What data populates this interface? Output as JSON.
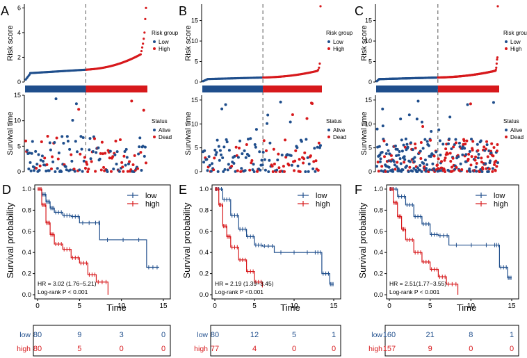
{
  "colors": {
    "low": "#1f4e8c",
    "high": "#d7191c",
    "axis": "#000000",
    "dash": "#555555"
  },
  "risk_panels": [
    {
      "letter": "A",
      "ylabel": "Risk score",
      "yticks": [
        0,
        2,
        4,
        6
      ],
      "ymax": 6.3,
      "cutoff_index": 80,
      "n": 160,
      "tail": [
        2.5,
        2.8,
        3.1,
        3.5,
        4.0,
        5.1,
        6.0
      ],
      "base_low": 0.2,
      "base_mid": 1.0,
      "base_end": 2.0
    },
    {
      "letter": "B",
      "ylabel": "Risk score",
      "yticks": [
        0,
        5,
        10,
        15
      ],
      "ymax": 19,
      "cutoff_index": 80,
      "n": 157,
      "tail": [
        3.0,
        3.5,
        4.5,
        18.5
      ],
      "base_low": 0.2,
      "base_mid": 1.1,
      "base_end": 2.4
    },
    {
      "letter": "C",
      "ylabel": "Risk score",
      "yticks": [
        0,
        5,
        10,
        15
      ],
      "ymax": 19,
      "cutoff_index": 160,
      "n": 317,
      "tail": [
        3.0,
        3.5,
        4.5,
        5.5,
        6.0,
        18.5
      ],
      "base_low": 0.2,
      "base_mid": 1.1,
      "base_end": 2.4
    }
  ],
  "risk_legend": {
    "title": "Risk group",
    "low": "Low",
    "high": "High"
  },
  "status_legend": {
    "title": "Status",
    "alive": "Alive",
    "dead": "Dead"
  },
  "surv_ylabel": "Survival time",
  "surv_yticks": [
    0,
    5,
    10,
    15
  ],
  "km_panels": [
    {
      "letter": "D",
      "hr": "HR = 3.02 (1.76−5.21)",
      "logrank": "Log-rank P < 0.001",
      "xticks": [
        0,
        5,
        10,
        15
      ],
      "xmax": 15,
      "risk_low": [
        80,
        9,
        3,
        0
      ],
      "risk_high": [
        80,
        5,
        0,
        0
      ]
    },
    {
      "letter": "E",
      "hr": "HR = 2.19 (1.39−3.45)",
      "logrank": "Log-rank P <0.001",
      "xticks": [
        0,
        5,
        10,
        15
      ],
      "xmax": 15,
      "risk_low": [
        80,
        12,
        5,
        1
      ],
      "risk_high": [
        77,
        4,
        0,
        0
      ]
    },
    {
      "letter": "F",
      "hr": "HR = 2.51(1.77−3.55)",
      "logrank": "Log-rank P < 0.001",
      "xticks": [
        0,
        5,
        10,
        15
      ],
      "xmax": 15,
      "risk_low": [
        160,
        21,
        8,
        1
      ],
      "risk_high": [
        157,
        9,
        0,
        0
      ]
    }
  ],
  "km_legend": {
    "low": "low",
    "high": "high"
  },
  "km_ylabel": "Survival probability",
  "km_xlabel": "Time",
  "km_yticks": [
    "0.0",
    "0.2",
    "0.4",
    "0.6",
    "0.8",
    "1.0"
  ],
  "risk_table_labels": {
    "low": "low",
    "high": "high"
  },
  "chart_data": [
    {
      "type": "scatter",
      "panel": "A",
      "ylabel": "Risk score",
      "ylim": [
        0,
        6.3
      ],
      "legend": [
        "Low",
        "High"
      ],
      "note": "sorted risk score, dashed cutoff"
    },
    {
      "type": "scatter",
      "panel": "A-status",
      "ylabel": "Survival time",
      "ylim": [
        0,
        15
      ],
      "legend": [
        "Alive",
        "Dead"
      ]
    },
    {
      "type": "scatter",
      "panel": "B",
      "ylabel": "Risk score",
      "ylim": [
        0,
        19
      ],
      "legend": [
        "Low",
        "High"
      ]
    },
    {
      "type": "scatter",
      "panel": "B-status",
      "ylabel": "Survival time",
      "ylim": [
        0,
        16
      ],
      "legend": [
        "Alive",
        "Dead"
      ]
    },
    {
      "type": "scatter",
      "panel": "C",
      "ylabel": "Risk score",
      "ylim": [
        0,
        19
      ],
      "legend": [
        "Low",
        "High"
      ]
    },
    {
      "type": "scatter",
      "panel": "C-status",
      "ylabel": "Survival time",
      "ylim": [
        0,
        16
      ],
      "legend": [
        "Alive",
        "Dead"
      ]
    },
    {
      "type": "line",
      "panel": "D",
      "xlabel": "Time",
      "ylabel": "Survival probability",
      "xlim": [
        0,
        15
      ],
      "ylim": [
        0,
        1
      ],
      "series": [
        {
          "name": "low",
          "x": [
            0,
            0.5,
            1,
            1.5,
            2,
            3,
            4,
            5,
            7.3,
            7.4,
            13,
            14.5
          ],
          "y": [
            1.0,
            0.95,
            0.88,
            0.82,
            0.78,
            0.75,
            0.74,
            0.68,
            0.68,
            0.52,
            0.26,
            0.26
          ]
        },
        {
          "name": "high",
          "x": [
            0,
            0.5,
            1,
            1.5,
            2,
            3,
            4,
            5,
            6,
            7,
            8.4
          ],
          "y": [
            1.0,
            0.85,
            0.68,
            0.57,
            0.48,
            0.43,
            0.35,
            0.3,
            0.19,
            0.12,
            0.0
          ]
        }
      ]
    },
    {
      "type": "line",
      "panel": "E",
      "xlabel": "Time",
      "ylabel": "Survival probability",
      "xlim": [
        0,
        15
      ],
      "ylim": [
        0,
        1
      ],
      "series": [
        {
          "name": "low",
          "x": [
            0,
            1,
            2,
            3,
            4,
            5,
            6,
            7.5,
            12.5,
            13.5,
            14.5,
            15
          ],
          "y": [
            1.0,
            0.9,
            0.75,
            0.62,
            0.55,
            0.47,
            0.46,
            0.4,
            0.4,
            0.2,
            0.1,
            0.1
          ]
        },
        {
          "name": "high",
          "x": [
            0,
            0.5,
            1,
            1.5,
            2,
            3,
            4,
            5,
            6
          ],
          "y": [
            1.0,
            0.85,
            0.65,
            0.55,
            0.45,
            0.33,
            0.22,
            0.12,
            0.07
          ]
        }
      ]
    },
    {
      "type": "line",
      "panel": "F",
      "xlabel": "Time",
      "ylabel": "Survival probability",
      "xlim": [
        0,
        15
      ],
      "ylim": [
        0,
        1
      ],
      "series": [
        {
          "name": "low",
          "x": [
            0,
            1,
            2,
            3,
            4,
            5,
            6,
            7.3,
            12.8,
            13.5,
            14.5,
            15
          ],
          "y": [
            1.0,
            0.93,
            0.85,
            0.74,
            0.67,
            0.57,
            0.56,
            0.47,
            0.47,
            0.26,
            0.16,
            0.16
          ]
        },
        {
          "name": "high",
          "x": [
            0,
            0.5,
            1,
            1.5,
            2,
            3,
            4,
            5,
            6,
            7,
            8.4
          ],
          "y": [
            1.0,
            0.87,
            0.74,
            0.62,
            0.52,
            0.4,
            0.31,
            0.24,
            0.17,
            0.1,
            0.0
          ]
        }
      ]
    }
  ]
}
